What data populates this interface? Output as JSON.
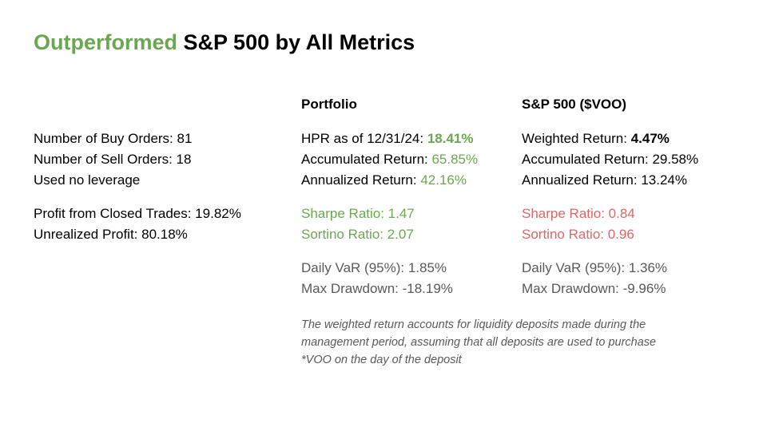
{
  "title": {
    "highlight": "Outperformed",
    "rest": "S&P 500 by All Metrics"
  },
  "left": {
    "buy_orders": "Number of Buy Orders: 81",
    "sell_orders": "Number of Sell Orders: 18",
    "leverage": "Used no leverage",
    "closed_profit": "Profit from Closed Trades: 19.82%",
    "unrealized_profit": "Unrealized Profit: 80.18%"
  },
  "portfolio": {
    "heading": "Portfolio",
    "hpr_label": "HPR as of 12/31/24: ",
    "hpr_value": "18.41%",
    "accumulated_label": "Accumulated Return: ",
    "accumulated_value": "65.85%",
    "annualized_label": "Annualized Return: ",
    "annualized_value": "42.16%",
    "sharpe": "Sharpe Ratio: 1.47",
    "sortino": "Sortino Ratio: 2.07",
    "var": "Daily VaR (95%): 1.85%",
    "drawdown": "Max Drawdown: -18.19%"
  },
  "sp500": {
    "heading": "S&P 500 ($VOO)",
    "weighted_label": "Weighted Return: ",
    "weighted_value": "4.47%",
    "accumulated": "Accumulated Return: 29.58%",
    "annualized": "Annualized Return: 13.24%",
    "sharpe": "Sharpe Ratio: 0.84",
    "sortino": "Sortino Ratio: 0.96",
    "var": "Daily VaR (95%): 1.36%",
    "drawdown": "Max Drawdown: -9.96%"
  },
  "note": {
    "line1": "The weighted return accounts for liquidity deposits made during the",
    "line2": "management period, assuming that all deposits are used to purchase",
    "line3": "*VOO on the day of the deposit"
  },
  "colors": {
    "green": "#6aa84f",
    "red": "#e06666",
    "gray": "#595959"
  }
}
